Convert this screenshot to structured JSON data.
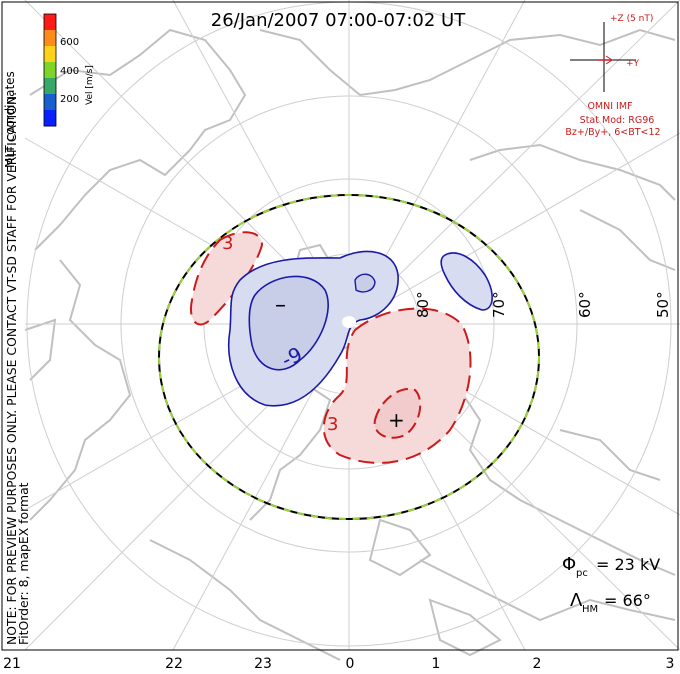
{
  "title": "26/Jan/2007 07:00-07:02 UT",
  "side_note": {
    "line1": "NOTE: FOR PREVIEW PURPOSES ONLY. PLEASE CONTACT VT-SD STAFF FOR VERIFICATION.",
    "line2": "FitOrder: 8, mapEX format"
  },
  "coordinate_label": "MLT coordinates",
  "color_scale": {
    "label": "Vel [m/s]",
    "ticks": [
      "600",
      "400",
      "200"
    ],
    "colors": [
      "#ff1a1a",
      "#ff8c1a",
      "#ffd21a",
      "#7fd42a",
      "#3aa76a",
      "#1a5fd0",
      "#0a1fff"
    ]
  },
  "imf": {
    "z_label": "+Z (5 nT)",
    "y_label": "+Y",
    "source": "OMNI IMF",
    "model_line1": "Stat Mod: RG96",
    "model_line2": "Bz+/By+, 6<BT<12"
  },
  "latitude_labels": [
    "80°",
    "70°",
    "60°",
    "50°"
  ],
  "mlt_labels": [
    "21",
    "22",
    "23",
    "0",
    "1",
    "2",
    "3"
  ],
  "contour_labels": {
    "neg_minus": "–",
    "neg_nine": "-9",
    "pos_plus": "+",
    "pos_three_top": "3",
    "pos_three_bottom": "3"
  },
  "potential": {
    "phi_symbol": "Φ",
    "phi_sub": "pc",
    "phi_value": "= 23 kV",
    "lambda_symbol": "Λ",
    "lambda_sub": "HM",
    "lambda_value": "= 66°"
  },
  "colors": {
    "negative_contour": "#1a1aa8",
    "negative_fill": "#d8dcf0",
    "positive_contour": "#cc1a1a",
    "positive_fill": "#f6dada",
    "grid": "#c8c8c8",
    "boundary_dash": "#9ad23a"
  }
}
